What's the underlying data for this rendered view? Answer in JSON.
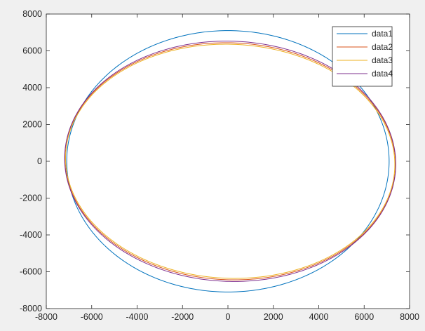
{
  "chart_data": {
    "type": "line",
    "title": "",
    "xlabel": "",
    "ylabel": "",
    "xlim": [
      -8000,
      8000
    ],
    "ylim": [
      -8000,
      8000
    ],
    "xticks": [
      -8000,
      -6000,
      -4000,
      -2000,
      0,
      2000,
      4000,
      6000,
      8000
    ],
    "yticks": [
      -8000,
      -6000,
      -4000,
      -2000,
      0,
      2000,
      4000,
      6000,
      8000
    ],
    "xtick_labels": [
      "-8000",
      "-6000",
      "-4000",
      "-2000",
      "0",
      "2000",
      "4000",
      "6000",
      "8000"
    ],
    "ytick_labels": [
      "-8000",
      "-6000",
      "-4000",
      "-2000",
      "0",
      "2000",
      "4000",
      "6000",
      "8000"
    ],
    "grid": false,
    "legend_position": "top-right",
    "series": [
      {
        "name": "data1",
        "color": "#0072bd",
        "shape": "ellipse",
        "center": [
          0,
          0
        ],
        "semi_axis_x": 7100,
        "semi_axis_y": 7100,
        "tilt_deg": 0
      },
      {
        "name": "data2",
        "color": "#d95319",
        "shape": "ellipse",
        "center": [
          100,
          0
        ],
        "semi_axis_x": 7290,
        "semi_axis_y": 6430,
        "tilt_deg": -6
      },
      {
        "name": "data3",
        "color": "#edb120",
        "shape": "ellipse",
        "center": [
          100,
          0
        ],
        "semi_axis_x": 7260,
        "semi_axis_y": 6350,
        "tilt_deg": -6
      },
      {
        "name": "data4",
        "color": "#7e2f8e",
        "shape": "ellipse",
        "center": [
          100,
          0
        ],
        "semi_axis_x": 7300,
        "semi_axis_y": 6520,
        "tilt_deg": -6
      }
    ]
  }
}
